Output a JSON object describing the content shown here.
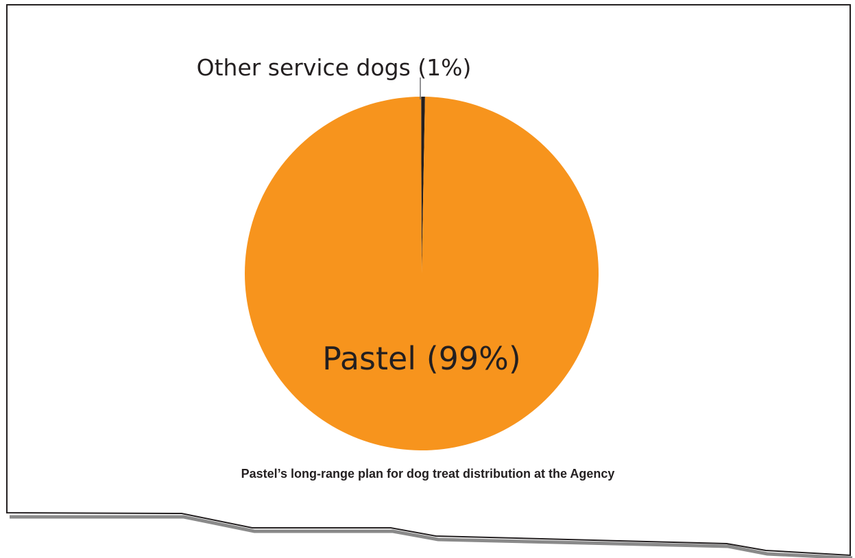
{
  "chart_data": {
    "type": "pie",
    "slices": [
      {
        "label": "Other service dogs (1%)",
        "value": 1,
        "color": "#231f20"
      },
      {
        "label": "Pastel (99%)",
        "value": 99,
        "color": "#f7941d"
      }
    ],
    "caption": "Pastel’s long-range plan for dog treat distribution at the Agency"
  },
  "colors": {
    "page_background": "#ffffff",
    "frame": "#231f20",
    "shadow": "#8a8a8a"
  }
}
